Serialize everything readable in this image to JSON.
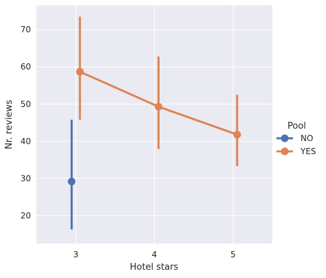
{
  "chart_data": {
    "type": "pointplot",
    "xlabel": "Hotel stars",
    "ylabel": "Nr. reviews",
    "categories": [
      "3",
      "4",
      "5"
    ],
    "yticks": [
      20,
      30,
      40,
      50,
      60,
      70
    ],
    "ylim": [
      12.5,
      76.5
    ],
    "grid": true,
    "legend": {
      "title": "Pool",
      "placement": "center-right"
    },
    "series": [
      {
        "name": "NO",
        "color": "#4c72b0",
        "points": [
          {
            "x": "3",
            "y": 29.2,
            "ci_low": 16.3,
            "ci_high": 45.8
          }
        ]
      },
      {
        "name": "YES",
        "color": "#dd8452",
        "points": [
          {
            "x": "3",
            "y": 58.7,
            "ci_low": 45.8,
            "ci_high": 73.5
          },
          {
            "x": "4",
            "y": 49.3,
            "ci_low": 37.9,
            "ci_high": 62.8
          },
          {
            "x": "5",
            "y": 41.8,
            "ci_low": 33.3,
            "ci_high": 52.5
          }
        ]
      }
    ]
  }
}
